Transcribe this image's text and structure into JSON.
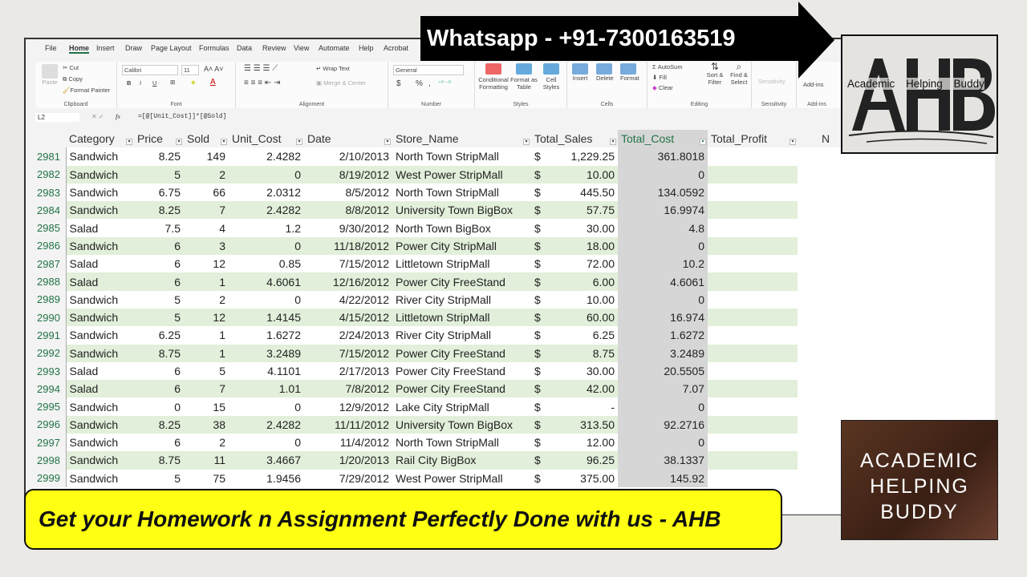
{
  "menu": [
    "File",
    "Home",
    "Insert",
    "Draw",
    "Page Layout",
    "Formulas",
    "Data",
    "Review",
    "View",
    "Automate",
    "Help",
    "Acrobat"
  ],
  "ribbon": {
    "clipboard": {
      "paste": "Paste",
      "cut": "Cut",
      "copy": "Copy",
      "format_painter": "Format Painter",
      "label": "Clipboard"
    },
    "font": {
      "name": "Calibri",
      "size": "11",
      "bold": "B",
      "italic": "I",
      "underline": "U",
      "label": "Font"
    },
    "alignment": {
      "wrap": "Wrap Text",
      "merge": "Merge & Center",
      "label": "Alignment"
    },
    "number": {
      "format": "General",
      "currency": "$",
      "percent": "%",
      "comma": ",",
      "label": "Number"
    },
    "styles": {
      "conditional": "Conditional Formatting",
      "format_table": "Format as Table",
      "cell_styles": "Cell Styles",
      "label": "Styles"
    },
    "cells": {
      "insert": "Insert",
      "delete": "Delete",
      "format": "Format",
      "label": "Cells"
    },
    "editing": {
      "autosum": "AutoSum",
      "fill": "Fill",
      "clear": "Clear",
      "sort": "Sort & Filter",
      "find": "Find & Select",
      "label": "Editing"
    },
    "sensitivity": {
      "btn": "Sensitivity",
      "label": "Sensitivity"
    },
    "addins": {
      "btn": "Add-ins",
      "label": "Add-ins"
    }
  },
  "formula_bar": {
    "cell_ref": "L2",
    "fx": "fx",
    "formula": "=[@[Unit_Cost]]*[@Sold]"
  },
  "headers": [
    "Category",
    "Price",
    "Sold",
    "Unit_Cost",
    "Date",
    "Store_Name",
    "Total_Sales",
    "Total_Cost",
    "Total_Profit",
    "N"
  ],
  "rows": [
    [
      "2981",
      "Sandwich",
      "8.25",
      "149",
      "2.4282",
      "2/10/2013",
      "North Town StripMall",
      "$",
      "1,229.25",
      "361.8018"
    ],
    [
      "2982",
      "Sandwich",
      "5",
      "2",
      "0",
      "8/19/2012",
      "West Power StripMall",
      "$",
      "10.00",
      "0"
    ],
    [
      "2983",
      "Sandwich",
      "6.75",
      "66",
      "2.0312",
      "8/5/2012",
      "North Town StripMall",
      "$",
      "445.50",
      "134.0592"
    ],
    [
      "2984",
      "Sandwich",
      "8.25",
      "7",
      "2.4282",
      "8/8/2012",
      "University Town BigBox",
      "$",
      "57.75",
      "16.9974"
    ],
    [
      "2985",
      "Salad",
      "7.5",
      "4",
      "1.2",
      "9/30/2012",
      "North Town BigBox",
      "$",
      "30.00",
      "4.8"
    ],
    [
      "2986",
      "Sandwich",
      "6",
      "3",
      "0",
      "11/18/2012",
      "Power City StripMall",
      "$",
      "18.00",
      "0"
    ],
    [
      "2987",
      "Salad",
      "6",
      "12",
      "0.85",
      "7/15/2012",
      "Littletown StripMall",
      "$",
      "72.00",
      "10.2"
    ],
    [
      "2988",
      "Salad",
      "6",
      "1",
      "4.6061",
      "12/16/2012",
      "Power City FreeStand",
      "$",
      "6.00",
      "4.6061"
    ],
    [
      "2989",
      "Sandwich",
      "5",
      "2",
      "0",
      "4/22/2012",
      "River City StripMall",
      "$",
      "10.00",
      "0"
    ],
    [
      "2990",
      "Sandwich",
      "5",
      "12",
      "1.4145",
      "4/15/2012",
      "Littletown StripMall",
      "$",
      "60.00",
      "16.974"
    ],
    [
      "2991",
      "Sandwich",
      "6.25",
      "1",
      "1.6272",
      "2/24/2013",
      "River City StripMall",
      "$",
      "6.25",
      "1.6272"
    ],
    [
      "2992",
      "Sandwich",
      "8.75",
      "1",
      "3.2489",
      "7/15/2012",
      "Power City FreeStand",
      "$",
      "8.75",
      "3.2489"
    ],
    [
      "2993",
      "Salad",
      "6",
      "5",
      "4.1101",
      "2/17/2013",
      "Power City FreeStand",
      "$",
      "30.00",
      "20.5505"
    ],
    [
      "2994",
      "Salad",
      "6",
      "7",
      "1.01",
      "7/8/2012",
      "Power City FreeStand",
      "$",
      "42.00",
      "7.07"
    ],
    [
      "2995",
      "Sandwich",
      "0",
      "15",
      "0",
      "12/9/2012",
      "Lake City StripMall",
      "$",
      "-",
      "0"
    ],
    [
      "2996",
      "Sandwich",
      "8.25",
      "38",
      "2.4282",
      "11/11/2012",
      "University Town BigBox",
      "$",
      "313.50",
      "92.2716"
    ],
    [
      "2997",
      "Sandwich",
      "6",
      "2",
      "0",
      "11/4/2012",
      "North Town StripMall",
      "$",
      "12.00",
      "0"
    ],
    [
      "2998",
      "Sandwich",
      "8.75",
      "11",
      "3.4667",
      "1/20/2013",
      "Rail City BigBox",
      "$",
      "96.25",
      "38.1337"
    ],
    [
      "2999",
      "Sandwich",
      "5",
      "75",
      "1.9456",
      "7/29/2012",
      "West Power StripMall",
      "$",
      "375.00",
      "145.92"
    ]
  ],
  "overlay": {
    "whatsapp": "Whatsapp - +91-7300163519",
    "logo_top": "AHB",
    "logo_top_sub": "Academic Helping Buddy",
    "logo_bottom": [
      "ACADEMIC",
      "HELPING",
      "BUDDY"
    ],
    "banner": "Get your Homework n Assignment Perfectly Done with us  - AHB"
  },
  "colors": {
    "band": "#e2efda",
    "selected_col": "#d6d6d6",
    "banner": "#ffff14",
    "accent": "#217346"
  }
}
